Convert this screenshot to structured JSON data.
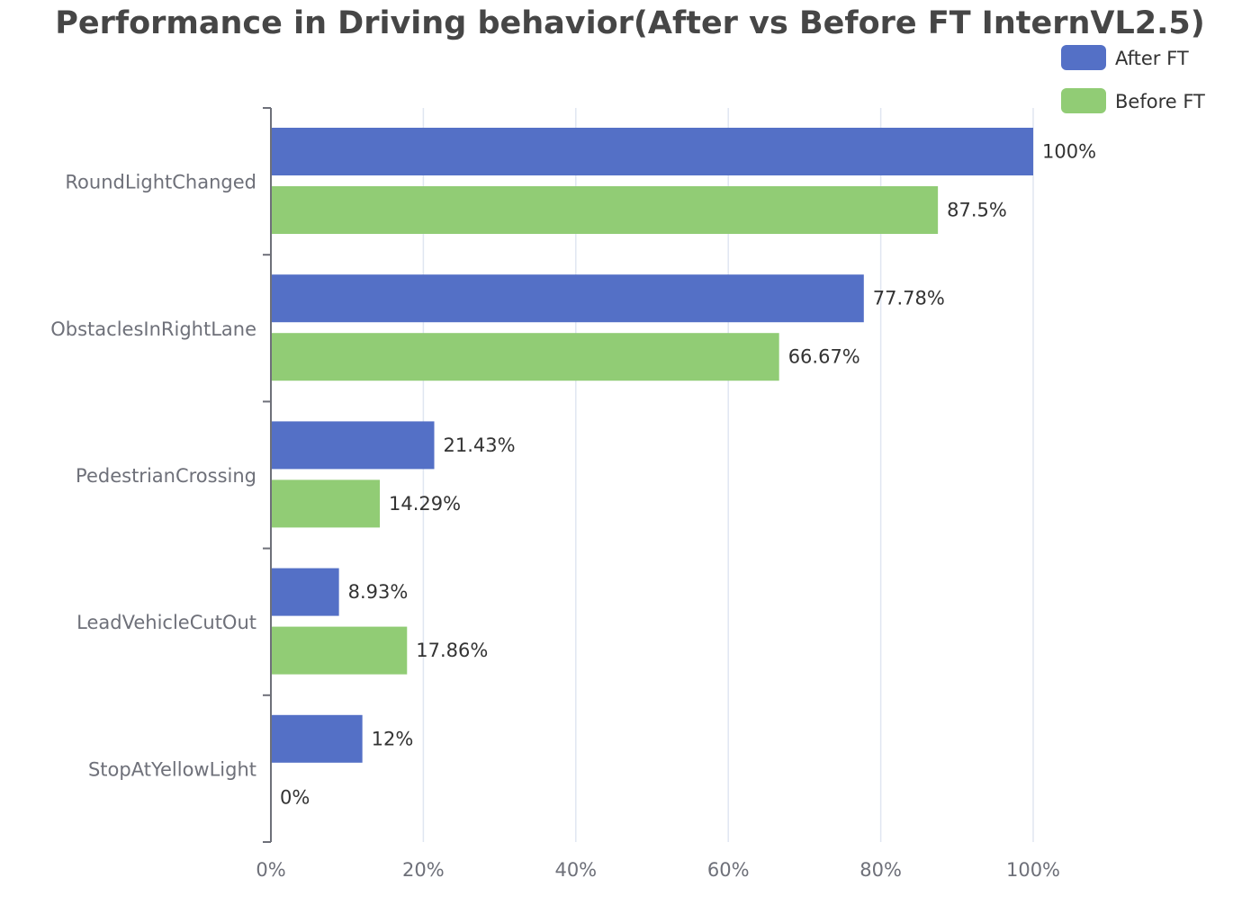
{
  "chart_data": {
    "type": "bar",
    "orientation": "horizontal",
    "title": "Performance in Driving behavior(After vs Before FT InternVL2.5)",
    "categories": [
      "RoundLightChanged",
      "ObstaclesInRightLane",
      "PedestrianCrossing",
      "LeadVehicleCutOut",
      "StopAtYellowLight"
    ],
    "series": [
      {
        "name": "After FT",
        "color": "#5470c6",
        "values": [
          100,
          77.78,
          21.43,
          8.93,
          12
        ],
        "labels": [
          "100%",
          "77.78%",
          "21.43%",
          "8.93%",
          "12%"
        ]
      },
      {
        "name": "Before FT",
        "color": "#91cc75",
        "values": [
          87.5,
          66.67,
          14.29,
          17.86,
          0
        ],
        "labels": [
          "87.5%",
          "66.67%",
          "14.29%",
          "17.86%",
          "0%"
        ]
      }
    ],
    "xlim": [
      0,
      100
    ],
    "xticks": [
      "0%",
      "20%",
      "40%",
      "60%",
      "80%",
      "100%"
    ],
    "grid": true,
    "legend_position": "top-right"
  }
}
